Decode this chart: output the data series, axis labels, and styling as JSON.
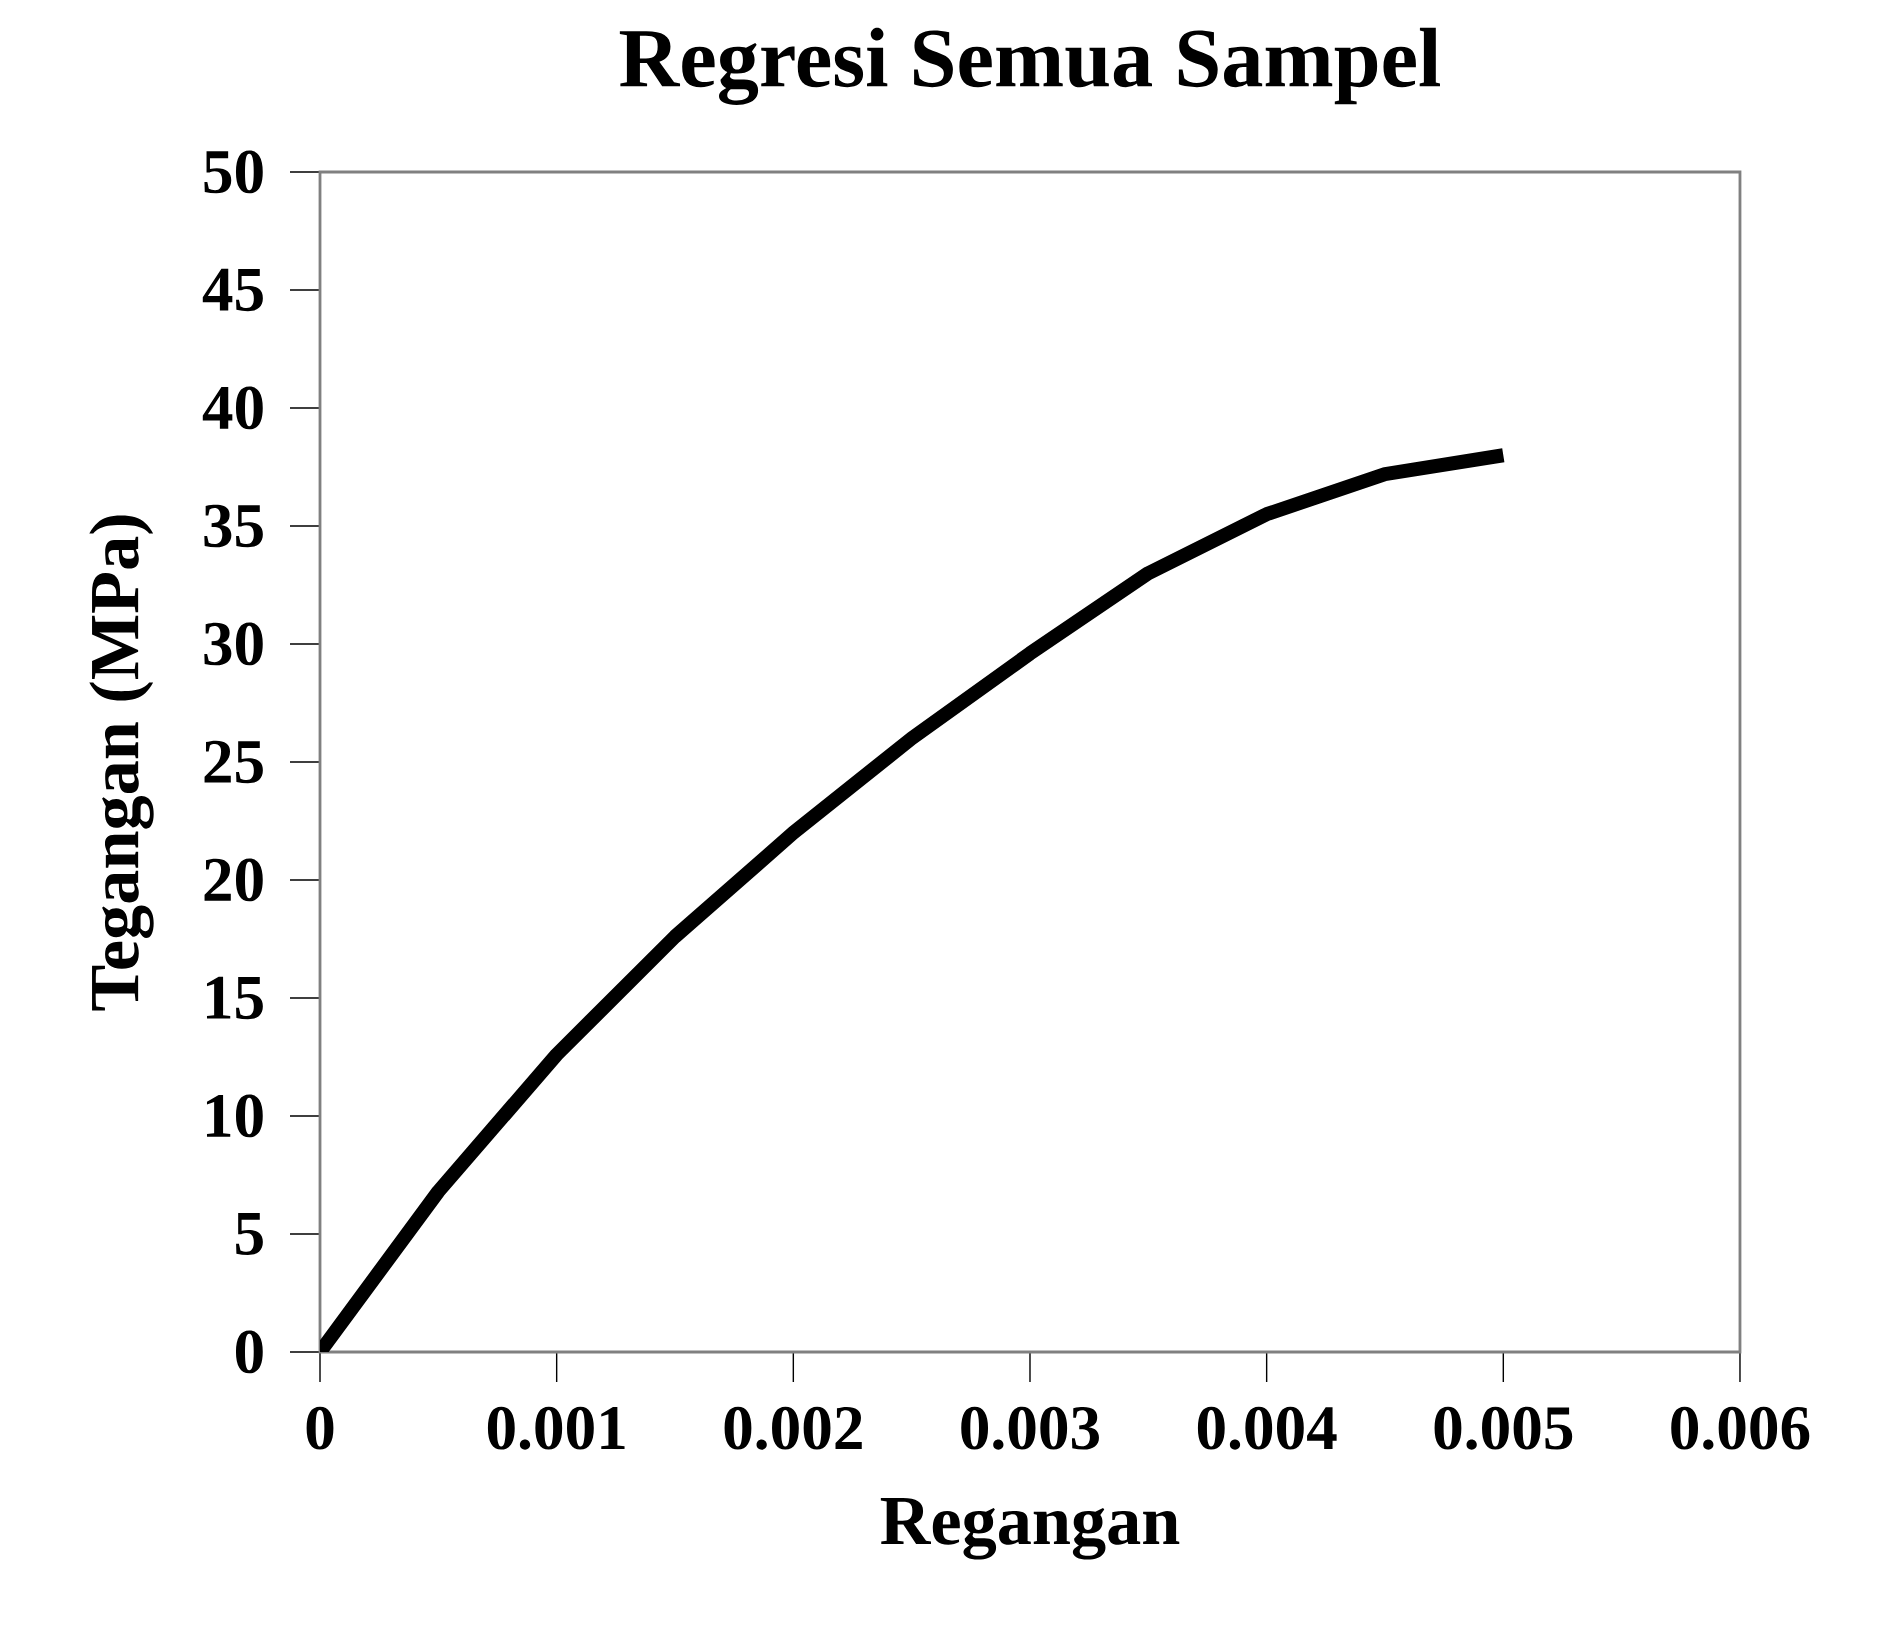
{
  "chart_data": {
    "type": "line",
    "title": "Regresi Semua Sampel",
    "xlabel": "Regangan",
    "ylabel": "Tegangan (MPa)",
    "x": [
      0,
      0.0005,
      0.001,
      0.0015,
      0.002,
      0.0025,
      0.003,
      0.0035,
      0.004,
      0.0045,
      0.005
    ],
    "series": [
      {
        "color": "#000000",
        "values": [
          0,
          6.8,
          12.6,
          17.6,
          22.0,
          26.0,
          29.6,
          33.0,
          35.5,
          37.2,
          38.0
        ]
      }
    ],
    "xlim": [
      0,
      0.006
    ],
    "xticks": [
      0,
      0.001,
      0.002,
      0.003,
      0.004,
      0.005,
      0.006
    ],
    "ylim": [
      0,
      50
    ],
    "yticks": [
      0,
      5,
      10,
      15,
      20,
      25,
      30,
      35,
      40,
      45,
      50
    ],
    "grid": false,
    "marker": "none",
    "line_style": "solid"
  }
}
